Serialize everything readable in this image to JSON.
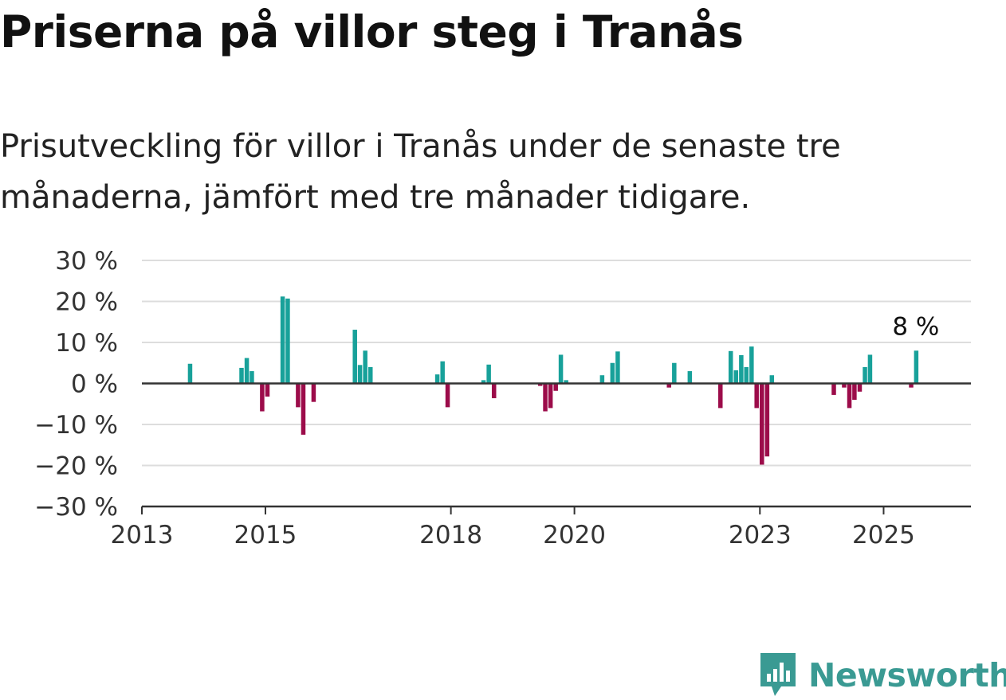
{
  "title": "Priserna på villor steg i Tranås",
  "subtitle": "Prisutveckling för villor i Tranås under de senaste tre månaderna, jämfört med tre månader tidigare.",
  "brand": {
    "name": "Newsworthy",
    "icon": "newsworthy-logo-icon",
    "color": "#3a9a93"
  },
  "colors": {
    "positive": "#18a19a",
    "negative": "#9c0c4a",
    "grid": "#dddddd",
    "axis": "#333333"
  },
  "chart_data": {
    "type": "bar",
    "title": "Priserna på villor steg i Tranås",
    "ylim": [
      -30,
      30
    ],
    "yticks": [
      30,
      20,
      10,
      0,
      -10,
      -20,
      -30
    ],
    "ytick_labels": [
      "30 %",
      "20 %",
      "10 %",
      "0 %",
      "−10 %",
      "−20 %",
      "−30 %"
    ],
    "xlim": [
      "2013-01-01",
      "2026-06-01"
    ],
    "xticks": [
      "2013-01-01",
      "2015-01-01",
      "2018-01-01",
      "2020-01-01",
      "2023-01-01",
      "2025-01-01"
    ],
    "xtick_labels": [
      "2013",
      "2015",
      "2018",
      "2020",
      "2023",
      "2025"
    ],
    "grid": true,
    "positive_color": "#18a19a",
    "negative_color": "#9c0c4a",
    "annotation": {
      "text": "8 %",
      "date": "2025-07-01",
      "value": 8
    },
    "points": [
      {
        "date": "2013-10-01",
        "value": 4.8
      },
      {
        "date": "2014-08-01",
        "value": 3.8
      },
      {
        "date": "2014-09-01",
        "value": 6.2
      },
      {
        "date": "2014-10-01",
        "value": 3.0
      },
      {
        "date": "2014-12-01",
        "value": -6.8
      },
      {
        "date": "2015-01-01",
        "value": -3.2
      },
      {
        "date": "2015-04-01",
        "value": 21.2
      },
      {
        "date": "2015-05-01",
        "value": 20.7
      },
      {
        "date": "2015-07-01",
        "value": -5.8
      },
      {
        "date": "2015-08-01",
        "value": -12.5
      },
      {
        "date": "2015-10-01",
        "value": -4.5
      },
      {
        "date": "2016-06-01",
        "value": 13.1
      },
      {
        "date": "2016-07-01",
        "value": 4.5
      },
      {
        "date": "2016-08-01",
        "value": 8.0
      },
      {
        "date": "2016-09-01",
        "value": 4.0
      },
      {
        "date": "2017-10-01",
        "value": 2.2
      },
      {
        "date": "2017-11-01",
        "value": 5.4
      },
      {
        "date": "2017-12-01",
        "value": -5.8
      },
      {
        "date": "2018-07-01",
        "value": 0.8
      },
      {
        "date": "2018-08-01",
        "value": 4.6
      },
      {
        "date": "2018-09-01",
        "value": -3.6
      },
      {
        "date": "2019-06-01",
        "value": -0.6
      },
      {
        "date": "2019-07-01",
        "value": -6.8
      },
      {
        "date": "2019-08-01",
        "value": -6.0
      },
      {
        "date": "2019-09-01",
        "value": -1.8
      },
      {
        "date": "2019-10-01",
        "value": 7.0
      },
      {
        "date": "2019-11-01",
        "value": 0.8
      },
      {
        "date": "2020-06-01",
        "value": 2.0
      },
      {
        "date": "2020-08-01",
        "value": 5.0
      },
      {
        "date": "2020-09-01",
        "value": 7.8
      },
      {
        "date": "2021-07-01",
        "value": -1.0
      },
      {
        "date": "2021-08-01",
        "value": 5.0
      },
      {
        "date": "2021-11-01",
        "value": 3.0
      },
      {
        "date": "2022-05-01",
        "value": -6.0
      },
      {
        "date": "2022-07-01",
        "value": 7.9
      },
      {
        "date": "2022-08-01",
        "value": 3.2
      },
      {
        "date": "2022-09-01",
        "value": 6.9
      },
      {
        "date": "2022-10-01",
        "value": 4.0
      },
      {
        "date": "2022-11-01",
        "value": 9.0
      },
      {
        "date": "2022-12-01",
        "value": -6.0
      },
      {
        "date": "2023-01-01",
        "value": -19.8
      },
      {
        "date": "2023-02-01",
        "value": -17.8
      },
      {
        "date": "2023-03-01",
        "value": 2.0
      },
      {
        "date": "2024-03-01",
        "value": -2.8
      },
      {
        "date": "2024-05-01",
        "value": -1.0
      },
      {
        "date": "2024-06-01",
        "value": -6.0
      },
      {
        "date": "2024-07-01",
        "value": -4.0
      },
      {
        "date": "2024-08-01",
        "value": -2.0
      },
      {
        "date": "2024-09-01",
        "value": 4.0
      },
      {
        "date": "2024-10-01",
        "value": 7.0
      },
      {
        "date": "2025-06-01",
        "value": -1.0
      },
      {
        "date": "2025-07-01",
        "value": 8.0
      }
    ]
  }
}
